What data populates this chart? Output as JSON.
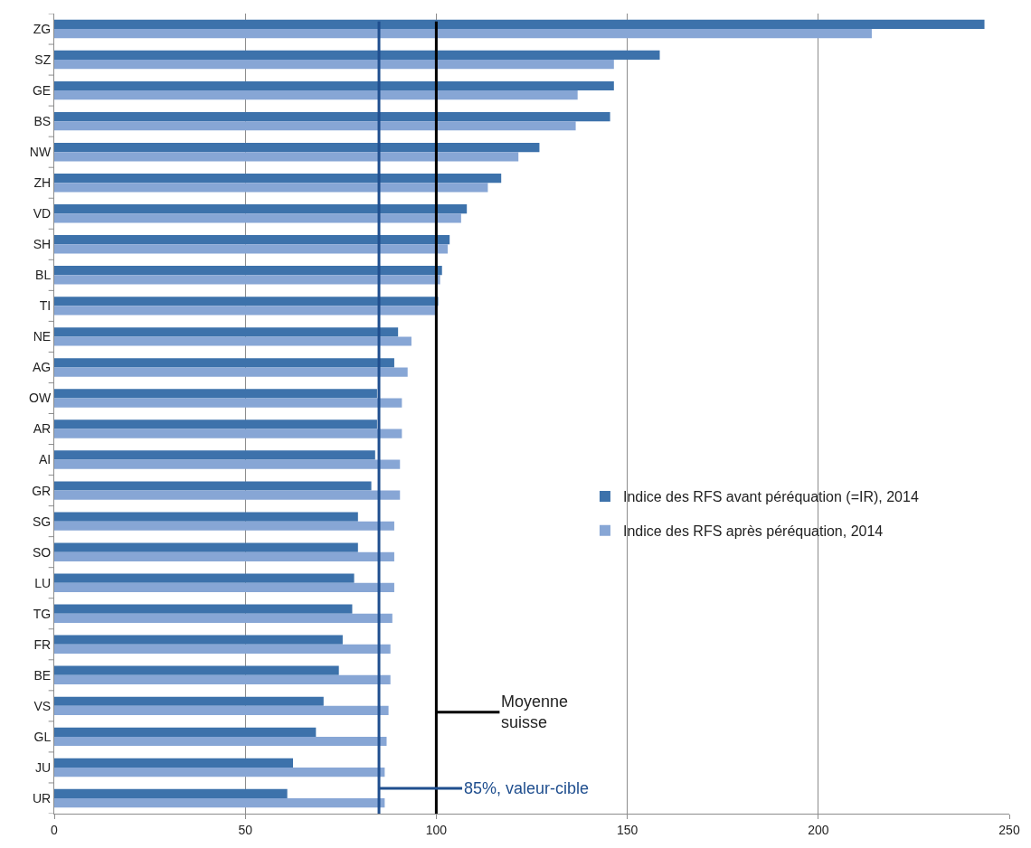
{
  "chart_data": {
    "type": "bar",
    "orientation": "horizontal",
    "categories": [
      "ZG",
      "SZ",
      "GE",
      "BS",
      "NW",
      "ZH",
      "VD",
      "SH",
      "BL",
      "TI",
      "NE",
      "AG",
      "OW",
      "AR",
      "AI",
      "GR",
      "SG",
      "SO",
      "LU",
      "TG",
      "FR",
      "BE",
      "VS",
      "GL",
      "JU",
      "UR"
    ],
    "series": [
      {
        "name": "Indice des RFS avant péréquation (=IR), 2014",
        "color": "#3d72ab",
        "values": [
          243.5,
          158.5,
          146.5,
          145.5,
          127,
          117,
          108,
          103.5,
          101.5,
          100.5,
          90,
          89,
          84.5,
          84.5,
          84,
          83,
          79.5,
          79.5,
          78.5,
          78,
          75.5,
          74.5,
          70.5,
          68.5,
          62.5,
          61
        ]
      },
      {
        "name": "Indice des RFS après péréquation, 2014",
        "color": "#87a6d5",
        "values": [
          214,
          146.5,
          137,
          136.5,
          121.5,
          113.5,
          106.5,
          103,
          101,
          100,
          93.5,
          92.5,
          91,
          91,
          90.5,
          90.5,
          89,
          89,
          89,
          88.5,
          88,
          88,
          87.5,
          87,
          86.5,
          86.5
        ]
      }
    ],
    "xlim": [
      0,
      250
    ],
    "xticks": [
      0,
      50,
      100,
      150,
      200,
      250
    ],
    "grid": "x",
    "legend": "right",
    "ref_lines": [
      {
        "axis": "x",
        "value": 85,
        "label": "85%, valeur-cible",
        "color": "#1f4e8e"
      },
      {
        "axis": "x",
        "value": 100,
        "label": "Moyenne\nsuisse",
        "color": "#000000"
      }
    ]
  }
}
